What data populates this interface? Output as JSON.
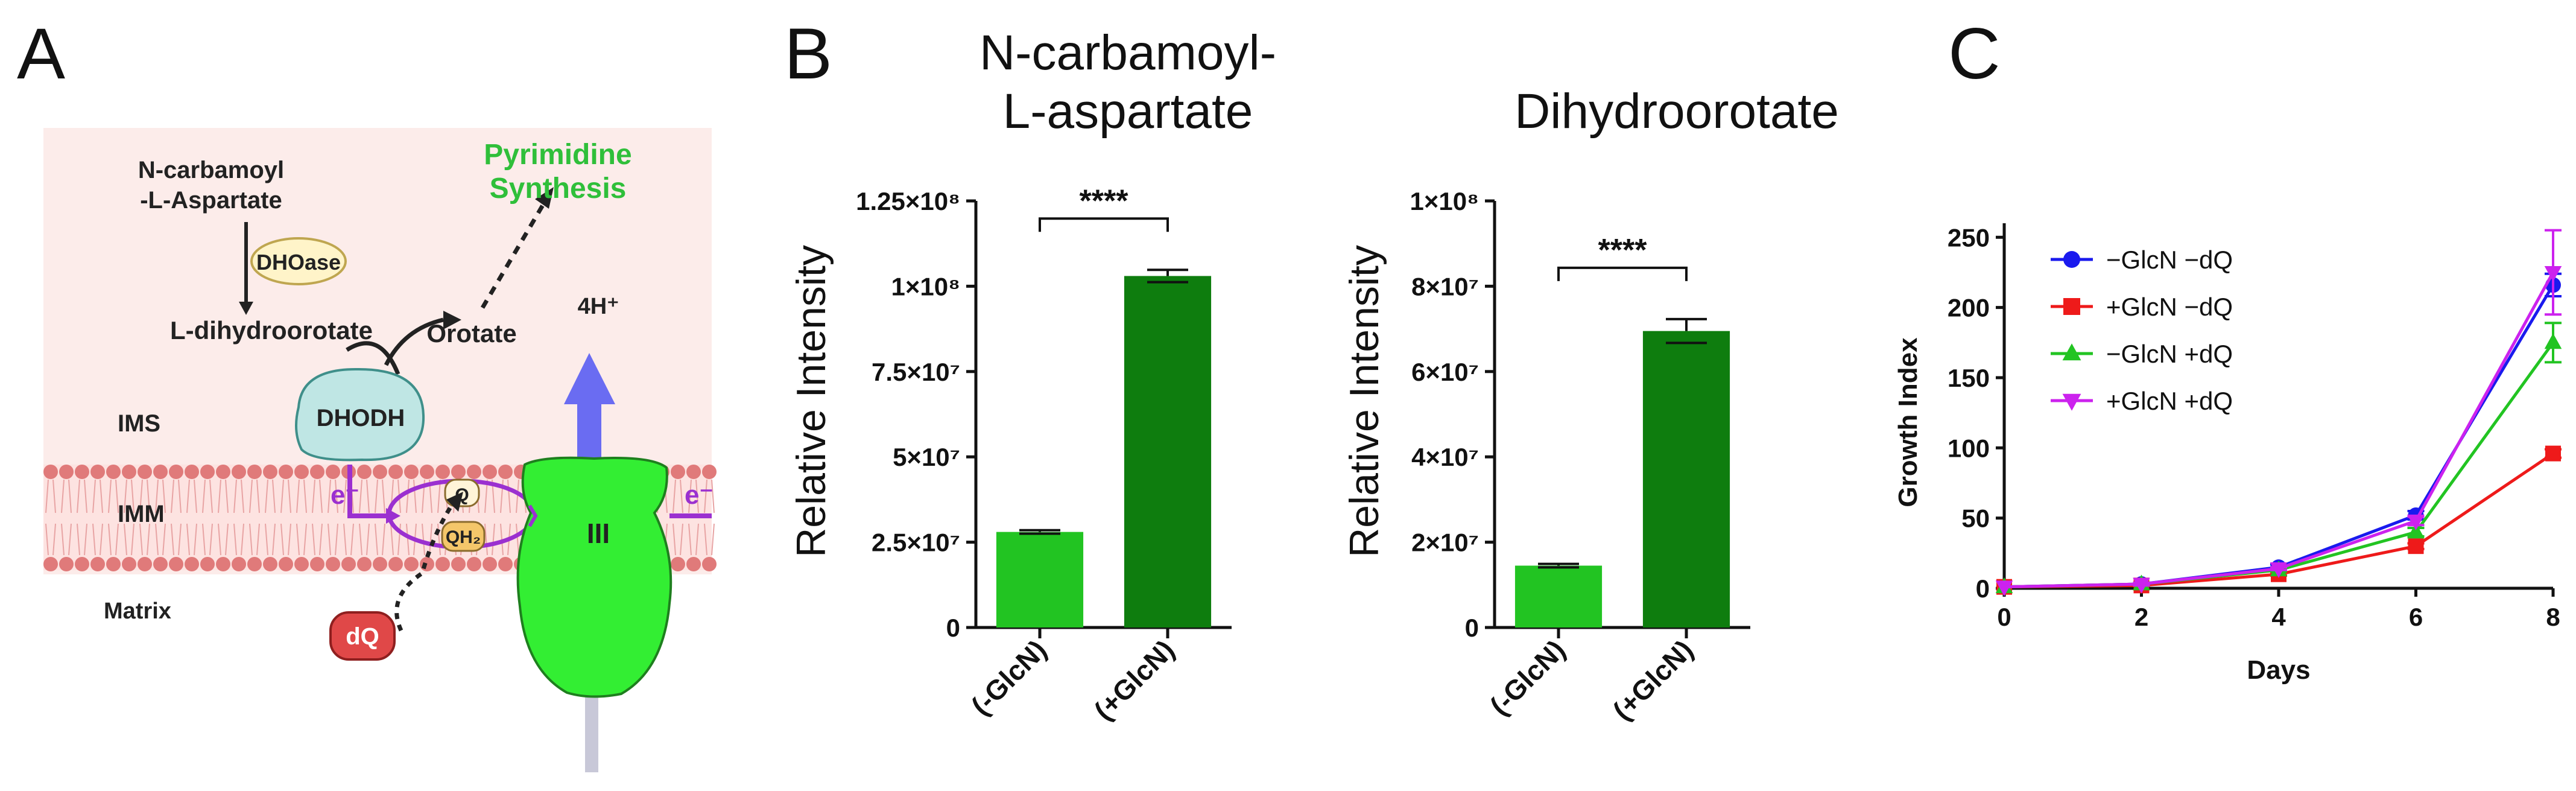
{
  "panels": {
    "a": "A",
    "b": "B",
    "c": "C"
  },
  "diagram": {
    "substrate_line1": "N-carbamoyl",
    "substrate_line2": "-L-Aspartate",
    "enzyme1": "DHOase",
    "intermediate": "L-dihydroorotate",
    "product": "Orotate",
    "pathway_line1": "Pyrimidine",
    "pathway_line2": "Synthesis",
    "protons": "4H⁺",
    "dhodh": "DHODH",
    "ims": "IMS",
    "imm": "IMM",
    "matrix": "Matrix",
    "electron_left": "e⁻",
    "electron_right": "e⁻",
    "quinone": "Q",
    "quinol": "QH₂",
    "complex": "III",
    "inhibitor": "dQ",
    "colors": {
      "ims_bg": "#fcecea",
      "membrane": "#e07a7a",
      "complex": "#33ee33",
      "arrow_blue": "#6a6cf2",
      "electron": "#9b30d0",
      "dhodh_fill": "#bfe6e4",
      "dq_fill": "#e04848",
      "pathway_green": "#2fbf3a"
    }
  },
  "chart_data": [
    {
      "type": "bar",
      "title": "N-carbamoyl- L-aspartate",
      "title_lines": [
        "N-carbamoyl-",
        "L-aspartate"
      ],
      "ylabel": "Relative Intensity",
      "categories": [
        "(-GlcN)",
        "(+GlcN)"
      ],
      "values": [
        28000000,
        103000000
      ],
      "errors": [
        500000,
        1800000
      ],
      "ylim": [
        0,
        125000000
      ],
      "yticks": [
        0,
        25000000,
        50000000,
        75000000,
        100000000,
        125000000
      ],
      "ytick_labels": [
        "0",
        "2.5×10⁷",
        "5×10⁷",
        "7.5×10⁷",
        "1×10⁸",
        "1.25×10⁸"
      ],
      "significance": "****",
      "colors": [
        "#22c422",
        "#0e7d0e"
      ]
    },
    {
      "type": "bar",
      "title": "Dihydroorotate",
      "title_lines": [
        "Dihydroorotate"
      ],
      "ylabel": "Relative Intensity",
      "categories": [
        "(-GlcN)",
        "(+GlcN)"
      ],
      "values": [
        14500000,
        69500000
      ],
      "errors": [
        400000,
        2800000
      ],
      "ylim": [
        0,
        100000000
      ],
      "yticks": [
        0,
        20000000,
        40000000,
        60000000,
        80000000,
        100000000
      ],
      "ytick_labels": [
        "0",
        "2×10⁷",
        "4×10⁷",
        "6×10⁷",
        "8×10⁷",
        "1×10⁸"
      ],
      "significance": "****",
      "colors": [
        "#22c422",
        "#0e7d0e"
      ]
    },
    {
      "type": "line",
      "xlabel": "Days",
      "ylabel": "Growth Index",
      "x": [
        0,
        2,
        4,
        6,
        8
      ],
      "xlim": [
        0,
        8
      ],
      "ylim": [
        0,
        260
      ],
      "xticks": [
        0,
        2,
        4,
        6,
        8
      ],
      "yticks": [
        0,
        50,
        100,
        150,
        200,
        250
      ],
      "legend_position": "top-left",
      "series": [
        {
          "name": "−GlcN −dQ",
          "values": [
            1,
            3,
            15,
            52,
            216
          ],
          "errors": [
            0,
            1,
            2,
            3,
            8
          ],
          "color": "#1a1aee",
          "marker": "circle"
        },
        {
          "name": "+GlcN −dQ",
          "values": [
            1,
            2,
            10,
            30,
            96
          ],
          "errors": [
            0,
            0,
            1,
            2,
            3
          ],
          "color": "#ee1a1a",
          "marker": "square"
        },
        {
          "name": "−GlcN +dQ",
          "values": [
            1,
            3,
            13,
            40,
            175
          ],
          "errors": [
            0,
            1,
            1,
            3,
            14
          ],
          "color": "#22c422",
          "marker": "triangle-up"
        },
        {
          "name": "+GlcN +dQ",
          "values": [
            1,
            3,
            14,
            48,
            225
          ],
          "errors": [
            0,
            1,
            1,
            3,
            30
          ],
          "color": "#cc22ee",
          "marker": "triangle-down"
        }
      ]
    }
  ]
}
